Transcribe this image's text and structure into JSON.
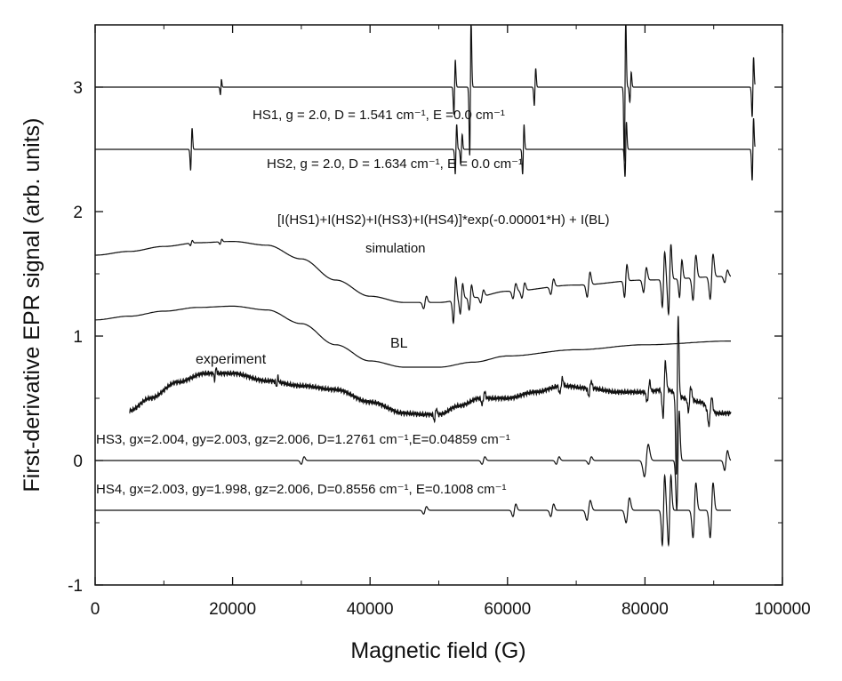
{
  "chart_data": {
    "type": "line",
    "title": "",
    "xlabel": "Magnetic field (G)",
    "ylabel": "First-derivative EPR signal (arb. units)",
    "xlim": [
      0,
      100000
    ],
    "ylim": [
      -1,
      3.5
    ],
    "x_ticks": [
      0,
      20000,
      40000,
      60000,
      80000,
      100000
    ],
    "y_ticks": [
      -1,
      0,
      1,
      2,
      3
    ],
    "grid": false,
    "legend": "none",
    "line_color": "#111111",
    "series": [
      {
        "annotation": "HS1, g = 2.0, D = 1.541 cm⁻¹, E =0.0 cm⁻¹",
        "baseline": 3.0,
        "x_start": 0,
        "x_end": 96000,
        "lines": [
          {
            "x": 18300,
            "amp": 0.06,
            "w": 120
          },
          {
            "x": 52300,
            "amp": 0.22,
            "w": 150
          },
          {
            "x": 54600,
            "amp": 0.55,
            "w": 150
          },
          {
            "x": 64000,
            "amp": 0.15,
            "w": 150
          },
          {
            "x": 77100,
            "amp": 0.6,
            "w": 150
          },
          {
            "x": 77900,
            "amp": 0.12,
            "w": 150
          },
          {
            "x": 95700,
            "amp": 0.24,
            "w": 150
          }
        ]
      },
      {
        "annotation": "HS2, g = 2.0, D = 1.634 cm⁻¹, E = 0.0 cm⁻¹",
        "baseline": 2.5,
        "x_start": 0,
        "x_end": 96000,
        "lines": [
          {
            "x": 14000,
            "amp": 0.17,
            "w": 150
          },
          {
            "x": 52500,
            "amp": 0.2,
            "w": 150
          },
          {
            "x": 53300,
            "amp": 0.12,
            "w": 150
          },
          {
            "x": 62300,
            "amp": 0.2,
            "w": 150
          },
          {
            "x": 77200,
            "amp": 0.22,
            "w": 150
          },
          {
            "x": 95700,
            "amp": 0.25,
            "w": 150
          }
        ]
      },
      {
        "annotation": "[I(HS1)+I(HS2)+I(HS3)+I(HS4)]*exp(-0.00001*H) + I(BL)",
        "label": "simulation",
        "offset": 0.52,
        "x_start": 0,
        "x_end": 92500,
        "lines": [
          {
            "x": 14000,
            "amp": 0.02,
            "w": 200
          },
          {
            "x": 18300,
            "amp": 0.02,
            "w": 200
          },
          {
            "x": 48000,
            "amp": 0.05,
            "w": 300
          },
          {
            "x": 52300,
            "amp": 0.18,
            "w": 250
          },
          {
            "x": 53300,
            "amp": 0.12,
            "w": 250
          },
          {
            "x": 54600,
            "amp": 0.1,
            "w": 250
          },
          {
            "x": 56300,
            "amp": 0.05,
            "w": 300
          },
          {
            "x": 61000,
            "amp": 0.06,
            "w": 300
          },
          {
            "x": 62300,
            "amp": 0.06,
            "w": 300
          },
          {
            "x": 66500,
            "amp": 0.06,
            "w": 300
          },
          {
            "x": 71800,
            "amp": 0.1,
            "w": 300
          },
          {
            "x": 77200,
            "amp": 0.13,
            "w": 250
          },
          {
            "x": 80000,
            "amp": 0.1,
            "w": 300
          },
          {
            "x": 82700,
            "amp": 0.22,
            "w": 250
          },
          {
            "x": 83600,
            "amp": 0.28,
            "w": 250
          },
          {
            "x": 85200,
            "amp": 0.15,
            "w": 250
          },
          {
            "x": 87200,
            "amp": 0.18,
            "w": 300
          },
          {
            "x": 89700,
            "amp": 0.18,
            "w": 300
          },
          {
            "x": 91800,
            "amp": 0.05,
            "w": 300
          }
        ]
      },
      {
        "label": "BL",
        "x_start": 0,
        "x_end": 92500,
        "points": [
          [
            0,
            1.13
          ],
          [
            5000,
            1.16
          ],
          [
            10000,
            1.2
          ],
          [
            15000,
            1.23
          ],
          [
            20000,
            1.24
          ],
          [
            25000,
            1.21
          ],
          [
            30000,
            1.1
          ],
          [
            35000,
            0.93
          ],
          [
            40000,
            0.8
          ],
          [
            45000,
            0.75
          ],
          [
            50000,
            0.75
          ],
          [
            55000,
            0.79
          ],
          [
            60000,
            0.84
          ],
          [
            70000,
            0.89
          ],
          [
            80000,
            0.93
          ],
          [
            92500,
            0.96
          ]
        ]
      },
      {
        "label": "experiment",
        "x_start": 5000,
        "x_end": 92500,
        "points": [
          [
            5000,
            0.4
          ],
          [
            8000,
            0.5
          ],
          [
            12000,
            0.63
          ],
          [
            16000,
            0.7
          ],
          [
            20000,
            0.7
          ],
          [
            25000,
            0.64
          ],
          [
            30000,
            0.6
          ],
          [
            35000,
            0.57
          ],
          [
            40000,
            0.47
          ],
          [
            45000,
            0.38
          ],
          [
            48000,
            0.37
          ],
          [
            50000,
            0.37
          ],
          [
            53000,
            0.44
          ],
          [
            56000,
            0.5
          ],
          [
            60000,
            0.5
          ],
          [
            64000,
            0.55
          ],
          [
            68000,
            0.6
          ],
          [
            72000,
            0.58
          ],
          [
            76000,
            0.55
          ],
          [
            80000,
            0.55
          ],
          [
            83000,
            0.57
          ],
          [
            86000,
            0.5
          ],
          [
            88000,
            0.47
          ],
          [
            90000,
            0.38
          ],
          [
            92500,
            0.38
          ]
        ],
        "lines": [
          {
            "x": 17500,
            "amp": 0.05,
            "w": 150
          },
          {
            "x": 26500,
            "amp": 0.04,
            "w": 150
          },
          {
            "x": 49500,
            "amp": 0.05,
            "w": 200
          },
          {
            "x": 56500,
            "amp": 0.05,
            "w": 250
          },
          {
            "x": 67800,
            "amp": 0.06,
            "w": 250
          },
          {
            "x": 72000,
            "amp": 0.06,
            "w": 250
          },
          {
            "x": 80500,
            "amp": 0.08,
            "w": 250
          },
          {
            "x": 82800,
            "amp": 0.22,
            "w": 250
          },
          {
            "x": 84700,
            "amp": 0.65,
            "w": 200
          },
          {
            "x": 86500,
            "amp": 0.1,
            "w": 250
          },
          {
            "x": 89500,
            "amp": 0.12,
            "w": 300
          }
        ]
      },
      {
        "annotation": "HS3, gx=2.004, gy=2.003, gz=2.006, D=1.2761 cm⁻¹,E=0.04859 cm⁻¹",
        "baseline": 0.0,
        "x_start": 0,
        "x_end": 92500,
        "lines": [
          {
            "x": 30200,
            "amp": 0.03,
            "w": 300
          },
          {
            "x": 56500,
            "amp": 0.03,
            "w": 300
          },
          {
            "x": 67300,
            "amp": 0.03,
            "w": 300
          },
          {
            "x": 72000,
            "amp": 0.03,
            "w": 300
          },
          {
            "x": 80200,
            "amp": 0.13,
            "w": 400
          },
          {
            "x": 84800,
            "amp": 0.4,
            "w": 250
          },
          {
            "x": 91800,
            "amp": 0.08,
            "w": 300
          }
        ]
      },
      {
        "annotation": "HS4, gx=2.003, gy=1.998, gz=2.006, D=0.8556 cm⁻¹, E=0.1008 cm⁻¹",
        "baseline": -0.4,
        "x_start": 0,
        "x_end": 92500,
        "lines": [
          {
            "x": 48000,
            "amp": 0.03,
            "w": 300
          },
          {
            "x": 61000,
            "amp": 0.05,
            "w": 300
          },
          {
            "x": 66500,
            "amp": 0.05,
            "w": 300
          },
          {
            "x": 71800,
            "amp": 0.08,
            "w": 350
          },
          {
            "x": 77500,
            "amp": 0.1,
            "w": 350
          },
          {
            "x": 82700,
            "amp": 0.28,
            "w": 250
          },
          {
            "x": 83600,
            "amp": 0.28,
            "w": 250
          },
          {
            "x": 87200,
            "amp": 0.22,
            "w": 300
          },
          {
            "x": 89700,
            "amp": 0.22,
            "w": 300
          }
        ]
      }
    ]
  }
}
